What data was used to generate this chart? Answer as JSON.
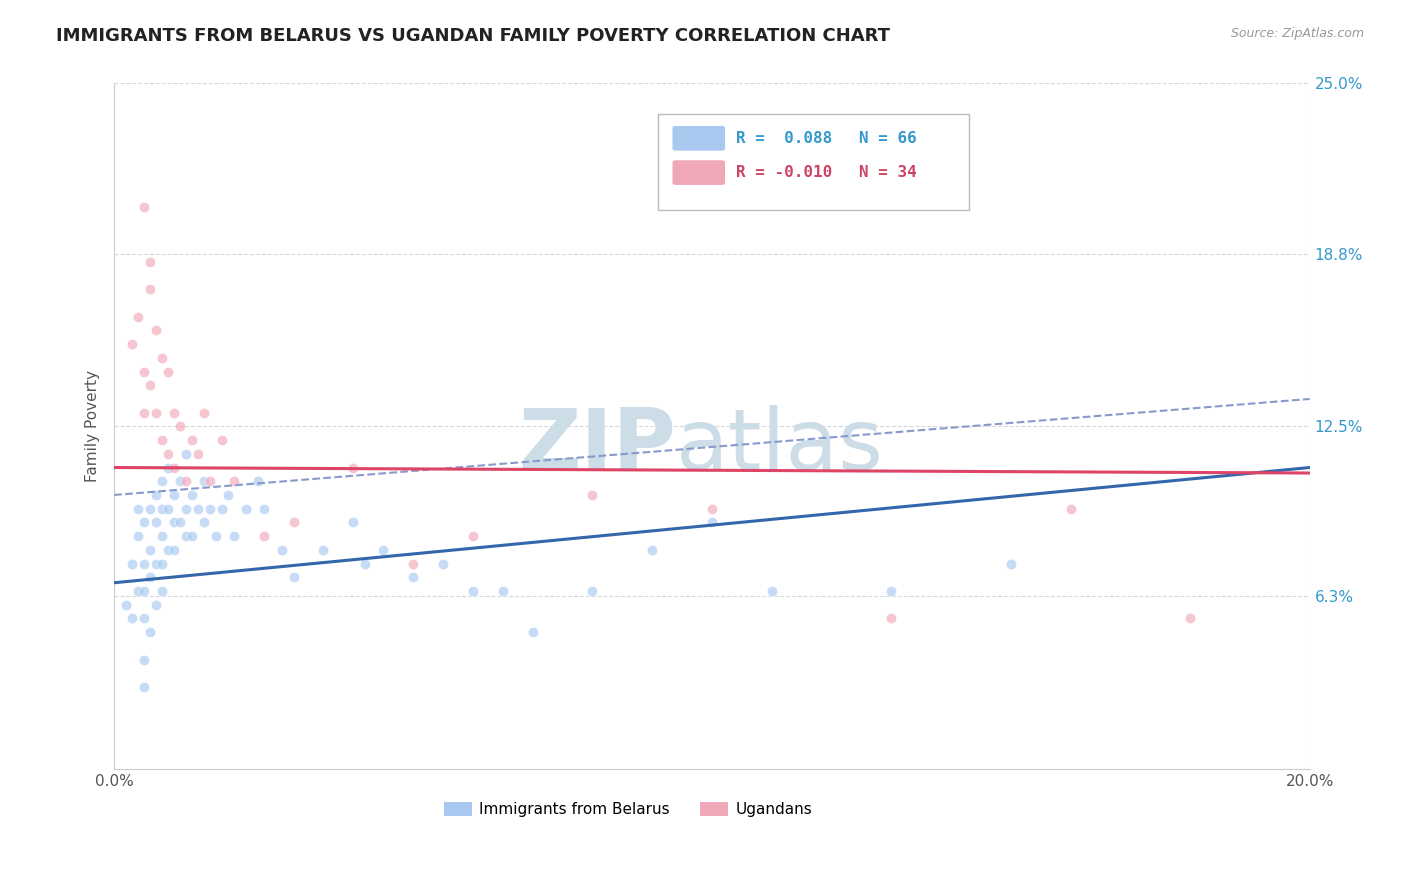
{
  "title": "IMMIGRANTS FROM BELARUS VS UGANDAN FAMILY POVERTY CORRELATION CHART",
  "source_text": "Source: ZipAtlas.com",
  "ylabel": "Family Poverty",
  "xlim": [
    0.0,
    0.2
  ],
  "ylim": [
    0.0,
    0.25
  ],
  "x_tick_labels": [
    "0.0%",
    "20.0%"
  ],
  "x_tick_positions": [
    0.0,
    0.2
  ],
  "y_tick_labels": [
    "25.0%",
    "18.8%",
    "12.5%",
    "6.3%"
  ],
  "y_tick_positions": [
    0.25,
    0.188,
    0.125,
    0.063
  ],
  "legend_labels": [
    "Immigrants from Belarus",
    "Ugandans"
  ],
  "legend_r_values": [
    "R =  0.088",
    "R = -0.010"
  ],
  "legend_n_values": [
    "N = 66",
    "N = 34"
  ],
  "color_blue": "#a8c8f0",
  "color_pink": "#f0a8b8",
  "color_blue_text": "#3399cc",
  "color_pink_text": "#cc4466",
  "color_blue_line": "#3366aa",
  "color_pink_line": "#dd4466",
  "color_dash_line": "#8899cc",
  "watermark_zip": "ZIP",
  "watermark_atlas": "atlas",
  "watermark_color": "#ccdde8",
  "background_color": "#ffffff",
  "grid_color": "#d8d8d8",
  "belarus_scatter_x": [
    0.002,
    0.003,
    0.003,
    0.004,
    0.004,
    0.004,
    0.005,
    0.005,
    0.005,
    0.005,
    0.005,
    0.005,
    0.006,
    0.006,
    0.006,
    0.006,
    0.007,
    0.007,
    0.007,
    0.007,
    0.008,
    0.008,
    0.008,
    0.008,
    0.008,
    0.009,
    0.009,
    0.009,
    0.01,
    0.01,
    0.01,
    0.011,
    0.011,
    0.012,
    0.012,
    0.012,
    0.013,
    0.013,
    0.014,
    0.015,
    0.015,
    0.016,
    0.017,
    0.018,
    0.019,
    0.02,
    0.022,
    0.024,
    0.025,
    0.028,
    0.03,
    0.035,
    0.04,
    0.042,
    0.045,
    0.05,
    0.055,
    0.06,
    0.065,
    0.07,
    0.08,
    0.09,
    0.1,
    0.11,
    0.13,
    0.15
  ],
  "belarus_scatter_y": [
    0.06,
    0.075,
    0.055,
    0.085,
    0.065,
    0.095,
    0.09,
    0.075,
    0.065,
    0.055,
    0.04,
    0.03,
    0.095,
    0.08,
    0.07,
    0.05,
    0.1,
    0.09,
    0.075,
    0.06,
    0.105,
    0.095,
    0.085,
    0.075,
    0.065,
    0.11,
    0.095,
    0.08,
    0.1,
    0.09,
    0.08,
    0.105,
    0.09,
    0.115,
    0.095,
    0.085,
    0.1,
    0.085,
    0.095,
    0.105,
    0.09,
    0.095,
    0.085,
    0.095,
    0.1,
    0.085,
    0.095,
    0.105,
    0.095,
    0.08,
    0.07,
    0.08,
    0.09,
    0.075,
    0.08,
    0.07,
    0.075,
    0.065,
    0.065,
    0.05,
    0.065,
    0.08,
    0.09,
    0.065,
    0.065,
    0.075
  ],
  "ugandan_scatter_x": [
    0.003,
    0.004,
    0.005,
    0.005,
    0.006,
    0.006,
    0.007,
    0.007,
    0.008,
    0.008,
    0.009,
    0.009,
    0.01,
    0.01,
    0.011,
    0.012,
    0.013,
    0.014,
    0.015,
    0.016,
    0.018,
    0.02,
    0.025,
    0.03,
    0.04,
    0.05,
    0.06,
    0.08,
    0.1,
    0.13,
    0.16,
    0.18,
    0.005,
    0.006
  ],
  "ugandan_scatter_y": [
    0.155,
    0.165,
    0.145,
    0.13,
    0.175,
    0.14,
    0.16,
    0.13,
    0.15,
    0.12,
    0.145,
    0.115,
    0.13,
    0.11,
    0.125,
    0.105,
    0.12,
    0.115,
    0.13,
    0.105,
    0.12,
    0.105,
    0.085,
    0.09,
    0.11,
    0.075,
    0.085,
    0.1,
    0.095,
    0.055,
    0.095,
    0.055,
    0.205,
    0.185
  ],
  "belarus_line_x": [
    0.0,
    0.2
  ],
  "belarus_line_y": [
    0.068,
    0.11
  ],
  "ugandan_line_x": [
    0.0,
    0.2
  ],
  "ugandan_line_y": [
    0.11,
    0.108
  ],
  "dash_line_x": [
    0.0,
    0.2
  ],
  "dash_line_y": [
    0.1,
    0.135
  ],
  "dot_size": 55,
  "dot_alpha": 0.65,
  "title_fontsize": 13,
  "axis_label_fontsize": 11,
  "tick_fontsize": 11,
  "legend_fontsize": 11
}
